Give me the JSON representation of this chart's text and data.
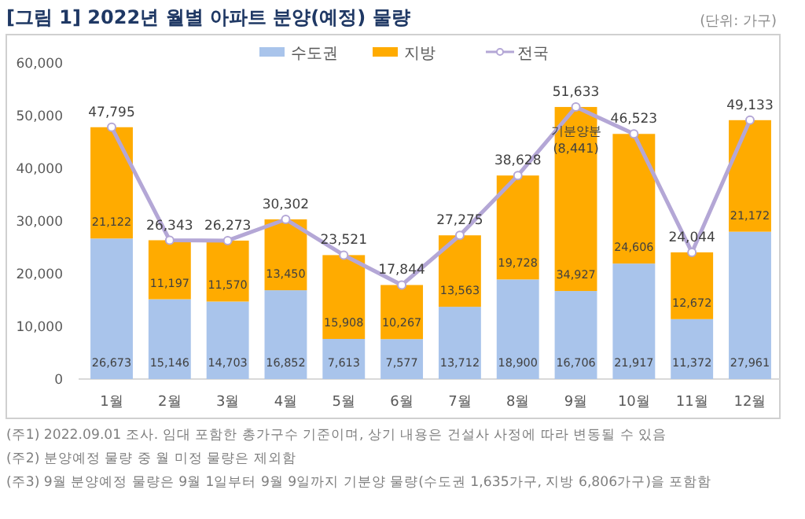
{
  "chart_data": {
    "type": "bar",
    "title": "[그림 1] 2022년 월별 아파트 분양(예정) 물량",
    "stacked": true,
    "grid": false,
    "legend": "top",
    "marker": "circle",
    "categories": [
      "1월",
      "2월",
      "3월",
      "4월",
      "5월",
      "6월",
      "7월",
      "8월",
      "9월",
      "10월",
      "11월",
      "12월"
    ],
    "series": [
      {
        "name": "수도권",
        "color": "#a9c4eb",
        "values": [
          26673,
          15146,
          14703,
          16852,
          7613,
          7577,
          13712,
          18900,
          16706,
          21917,
          11372,
          27961
        ],
        "value_labels": [
          "26,673",
          "15,146",
          "14,703",
          "16,852",
          "7,613",
          "7,577",
          "13,712",
          "18,900",
          "16,706",
          "21,917",
          "11,372",
          "27,961"
        ]
      },
      {
        "name": "지방",
        "color": "#ffab00",
        "values": [
          21122,
          11197,
          11570,
          13450,
          15908,
          10267,
          13563,
          19728,
          34927,
          24606,
          12672,
          21172
        ],
        "value_labels": [
          "21,122",
          "11,197",
          "11,570",
          "13,450",
          "15,908",
          "10,267",
          "13,563",
          "19,728",
          "34,927",
          "24,606",
          "12,672",
          "21,172"
        ]
      },
      {
        "name": "전국",
        "type": "line",
        "color": "#b4a7d6",
        "values": [
          47795,
          26343,
          26273,
          30302,
          23521,
          17844,
          27275,
          38628,
          51633,
          46523,
          24044,
          49133
        ],
        "value_labels": [
          "47,795",
          "26,343",
          "26,273",
          "30,302",
          "23,521",
          "17,844",
          "27,275",
          "38,628",
          "51,633",
          "46,523",
          "24,044",
          "49,133"
        ]
      }
    ],
    "ylim": [
      0,
      60000
    ],
    "yticks": [
      {
        "value": 0,
        "label": "0"
      },
      {
        "value": 10000,
        "label": "10,000"
      },
      {
        "value": 20000,
        "label": "20,000"
      },
      {
        "value": 30000,
        "label": "30,000"
      },
      {
        "value": 40000,
        "label": "40,000"
      },
      {
        "value": 50000,
        "label": "50,000"
      },
      {
        "value": 60000,
        "label": "60,000"
      }
    ],
    "annotations": [
      "(단위: 가구)",
      "기분양분 (8,441)",
      "(주1) 2022.09.01 조사. 임대 포함한 총가구수 기준이며, 상기 내용은 건설사 사정에 따라 변동될 수 있음",
      "(주2) 분양예정 물량 중 월 미정 물량은 제외함",
      "(주3) 9월 분양예정 물량은 9월 1일부터 9월 9일까지 기분양 물량(수도권 1,635가구, 지방 6,806가구)을 포함함"
    ]
  }
}
